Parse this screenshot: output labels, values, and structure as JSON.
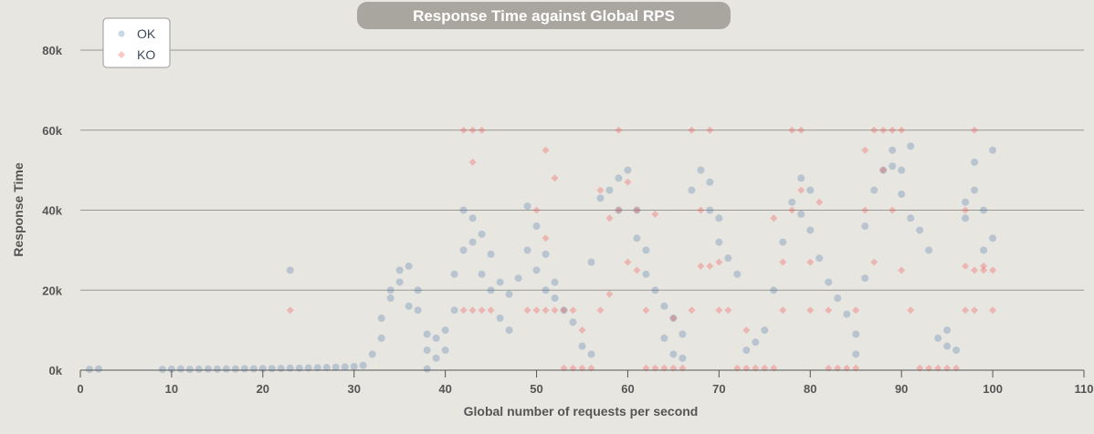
{
  "chart_data": {
    "type": "scatter",
    "title": "Response Time against Global RPS",
    "xlabel": "Global number of requests per second",
    "ylabel": "Response Time",
    "xlim": [
      0,
      110
    ],
    "ylim": [
      0,
      80000
    ],
    "x_ticks": [
      0,
      10,
      20,
      30,
      40,
      50,
      60,
      70,
      80,
      90,
      100,
      110
    ],
    "y_ticks": [
      0,
      20000,
      40000,
      60000,
      80000
    ],
    "y_tick_labels": [
      "0k",
      "20k",
      "40k",
      "60k",
      "80k"
    ],
    "grid": "horizontal",
    "legend_position": "top-left",
    "colors": {
      "ok": "#4a76a8",
      "ko": "#f15b5b",
      "background": "#e8e6e0",
      "title_bg": "#a8a69e"
    },
    "series": [
      {
        "name": "OK",
        "marker": "circle",
        "points": [
          [
            1,
            200
          ],
          [
            2,
            300
          ],
          [
            9,
            200
          ],
          [
            10,
            250
          ],
          [
            11,
            300
          ],
          [
            12,
            200
          ],
          [
            13,
            250
          ],
          [
            14,
            300
          ],
          [
            15,
            250
          ],
          [
            16,
            300
          ],
          [
            17,
            300
          ],
          [
            18,
            350
          ],
          [
            19,
            350
          ],
          [
            20,
            400
          ],
          [
            21,
            400
          ],
          [
            22,
            450
          ],
          [
            23,
            500
          ],
          [
            23,
            25000
          ],
          [
            24,
            500
          ],
          [
            25,
            550
          ],
          [
            26,
            600
          ],
          [
            27,
            650
          ],
          [
            28,
            700
          ],
          [
            29,
            800
          ],
          [
            30,
            900
          ],
          [
            31,
            1200
          ],
          [
            32,
            4000
          ],
          [
            33,
            8000
          ],
          [
            33,
            13000
          ],
          [
            34,
            18000
          ],
          [
            34,
            20000
          ],
          [
            35,
            22000
          ],
          [
            35,
            25000
          ],
          [
            36,
            16000
          ],
          [
            36,
            26000
          ],
          [
            37,
            15000
          ],
          [
            37,
            20000
          ],
          [
            38,
            300
          ],
          [
            38,
            5000
          ],
          [
            38,
            9000
          ],
          [
            39,
            3000
          ],
          [
            39,
            8000
          ],
          [
            40,
            5000
          ],
          [
            40,
            10000
          ],
          [
            41,
            15000
          ],
          [
            41,
            24000
          ],
          [
            42,
            30000
          ],
          [
            42,
            40000
          ],
          [
            43,
            38000
          ],
          [
            43,
            32000
          ],
          [
            44,
            34000
          ],
          [
            44,
            24000
          ],
          [
            45,
            29000
          ],
          [
            45,
            20000
          ],
          [
            46,
            13000
          ],
          [
            46,
            22000
          ],
          [
            47,
            10000
          ],
          [
            47,
            19000
          ],
          [
            48,
            23000
          ],
          [
            49,
            30000
          ],
          [
            49,
            41000
          ],
          [
            50,
            36000
          ],
          [
            50,
            25000
          ],
          [
            51,
            29000
          ],
          [
            51,
            20000
          ],
          [
            52,
            22000
          ],
          [
            52,
            18000
          ],
          [
            53,
            15000
          ],
          [
            54,
            12000
          ],
          [
            55,
            6000
          ],
          [
            56,
            4000
          ],
          [
            56,
            27000
          ],
          [
            57,
            43000
          ],
          [
            58,
            45000
          ],
          [
            59,
            40000
          ],
          [
            59,
            48000
          ],
          [
            60,
            50000
          ],
          [
            61,
            40000
          ],
          [
            61,
            33000
          ],
          [
            62,
            30000
          ],
          [
            62,
            24000
          ],
          [
            63,
            20000
          ],
          [
            64,
            16000
          ],
          [
            64,
            8000
          ],
          [
            65,
            13000
          ],
          [
            65,
            4000
          ],
          [
            66,
            3000
          ],
          [
            66,
            9000
          ],
          [
            67,
            45000
          ],
          [
            68,
            50000
          ],
          [
            69,
            47000
          ],
          [
            69,
            40000
          ],
          [
            70,
            38000
          ],
          [
            70,
            32000
          ],
          [
            71,
            28000
          ],
          [
            72,
            24000
          ],
          [
            73,
            5000
          ],
          [
            74,
            7000
          ],
          [
            75,
            10000
          ],
          [
            76,
            20000
          ],
          [
            77,
            32000
          ],
          [
            78,
            42000
          ],
          [
            79,
            48000
          ],
          [
            79,
            39000
          ],
          [
            80,
            45000
          ],
          [
            80,
            35000
          ],
          [
            81,
            28000
          ],
          [
            82,
            22000
          ],
          [
            83,
            18000
          ],
          [
            84,
            14000
          ],
          [
            85,
            9000
          ],
          [
            85,
            4000
          ],
          [
            86,
            23000
          ],
          [
            86,
            36000
          ],
          [
            87,
            45000
          ],
          [
            88,
            50000
          ],
          [
            89,
            55000
          ],
          [
            89,
            51000
          ],
          [
            90,
            50000
          ],
          [
            90,
            44000
          ],
          [
            91,
            56000
          ],
          [
            91,
            38000
          ],
          [
            92,
            35000
          ],
          [
            93,
            30000
          ],
          [
            94,
            8000
          ],
          [
            95,
            6000
          ],
          [
            95,
            10000
          ],
          [
            96,
            5000
          ],
          [
            97,
            42000
          ],
          [
            97,
            38000
          ],
          [
            98,
            45000
          ],
          [
            98,
            52000
          ],
          [
            99,
            30000
          ],
          [
            99,
            40000
          ],
          [
            100,
            55000
          ],
          [
            100,
            33000
          ]
        ]
      },
      {
        "name": "KO",
        "marker": "diamond",
        "points": [
          [
            23,
            15000
          ],
          [
            42,
            60000
          ],
          [
            42,
            15000
          ],
          [
            43,
            60000
          ],
          [
            43,
            52000
          ],
          [
            43,
            15000
          ],
          [
            44,
            60000
          ],
          [
            44,
            15000
          ],
          [
            45,
            15000
          ],
          [
            49,
            15000
          ],
          [
            50,
            40000
          ],
          [
            50,
            15000
          ],
          [
            51,
            55000
          ],
          [
            51,
            33000
          ],
          [
            51,
            15000
          ],
          [
            52,
            48000
          ],
          [
            52,
            15000
          ],
          [
            53,
            15000
          ],
          [
            53,
            500
          ],
          [
            54,
            15000
          ],
          [
            54,
            500
          ],
          [
            55,
            500
          ],
          [
            55,
            10000
          ],
          [
            56,
            500
          ],
          [
            57,
            45000
          ],
          [
            57,
            15000
          ],
          [
            58,
            19000
          ],
          [
            58,
            38000
          ],
          [
            59,
            60000
          ],
          [
            59,
            40000
          ],
          [
            60,
            27000
          ],
          [
            60,
            47000
          ],
          [
            61,
            25000
          ],
          [
            61,
            40000
          ],
          [
            62,
            15000
          ],
          [
            62,
            500
          ],
          [
            63,
            39000
          ],
          [
            63,
            500
          ],
          [
            64,
            500
          ],
          [
            65,
            500
          ],
          [
            65,
            13000
          ],
          [
            66,
            500
          ],
          [
            67,
            60000
          ],
          [
            67,
            15000
          ],
          [
            68,
            26000
          ],
          [
            68,
            40000
          ],
          [
            69,
            60000
          ],
          [
            69,
            26000
          ],
          [
            70,
            15000
          ],
          [
            70,
            27000
          ],
          [
            71,
            15000
          ],
          [
            72,
            500
          ],
          [
            73,
            500
          ],
          [
            73,
            10000
          ],
          [
            74,
            500
          ],
          [
            75,
            500
          ],
          [
            76,
            500
          ],
          [
            76,
            38000
          ],
          [
            77,
            27000
          ],
          [
            77,
            15000
          ],
          [
            78,
            60000
          ],
          [
            78,
            40000
          ],
          [
            79,
            60000
          ],
          [
            79,
            45000
          ],
          [
            80,
            27000
          ],
          [
            80,
            15000
          ],
          [
            81,
            42000
          ],
          [
            82,
            15000
          ],
          [
            82,
            500
          ],
          [
            83,
            500
          ],
          [
            84,
            500
          ],
          [
            85,
            500
          ],
          [
            85,
            15000
          ],
          [
            86,
            55000
          ],
          [
            86,
            40000
          ],
          [
            87,
            60000
          ],
          [
            87,
            27000
          ],
          [
            88,
            60000
          ],
          [
            88,
            50000
          ],
          [
            89,
            60000
          ],
          [
            89,
            40000
          ],
          [
            90,
            60000
          ],
          [
            90,
            25000
          ],
          [
            91,
            15000
          ],
          [
            92,
            500
          ],
          [
            93,
            500
          ],
          [
            94,
            500
          ],
          [
            95,
            500
          ],
          [
            96,
            500
          ],
          [
            97,
            26000
          ],
          [
            97,
            40000
          ],
          [
            97,
            15000
          ],
          [
            98,
            60000
          ],
          [
            98,
            25000
          ],
          [
            98,
            15000
          ],
          [
            99,
            25000
          ],
          [
            99,
            26000
          ],
          [
            100,
            15000
          ],
          [
            100,
            25000
          ]
        ]
      }
    ]
  }
}
